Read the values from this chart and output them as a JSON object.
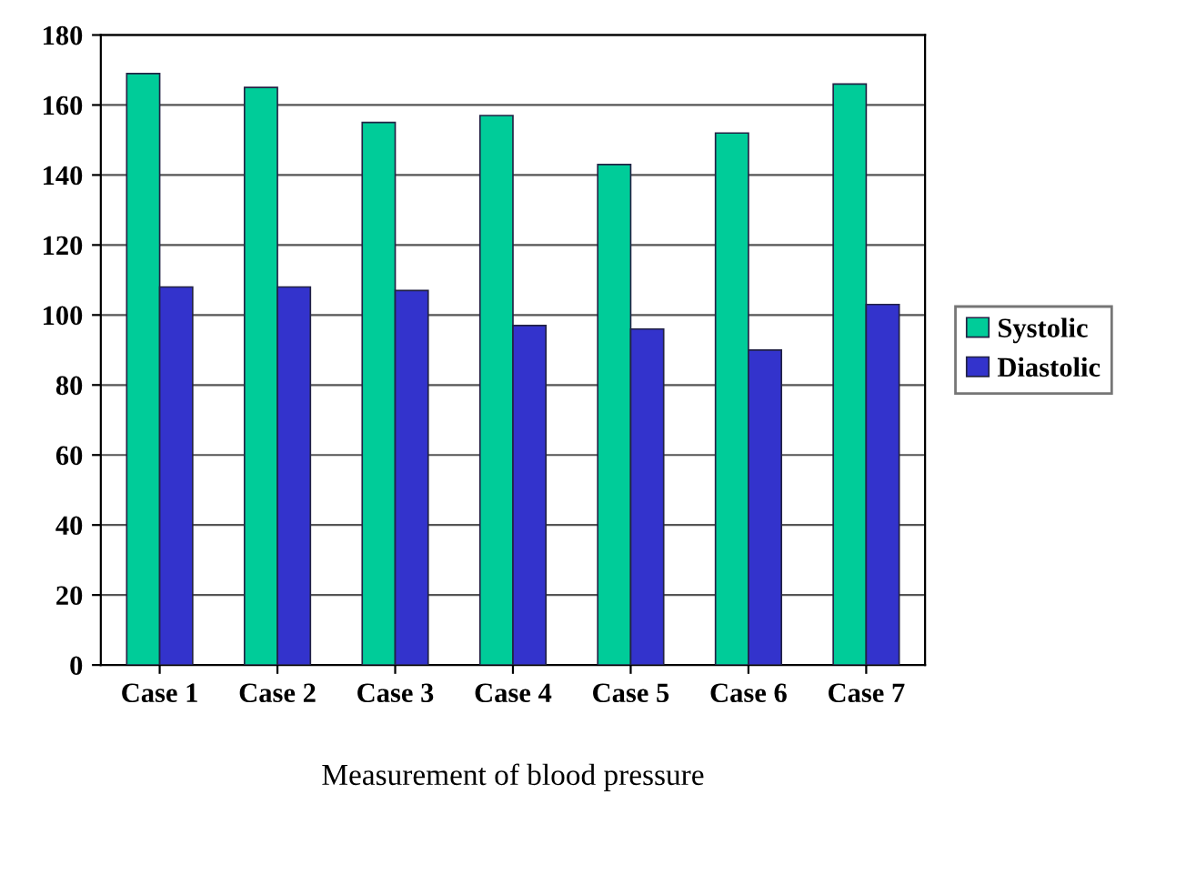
{
  "chart_data": {
    "type": "bar",
    "xlabel": "Measurement of blood pressure",
    "categories": [
      "Case 1",
      "Case 2",
      "Case 3",
      "Case 4",
      "Case 5",
      "Case 6",
      "Case 7"
    ],
    "series": [
      {
        "name": "Systolic",
        "color": "#00cc99",
        "values": [
          169,
          165,
          155,
          157,
          143,
          152,
          166
        ]
      },
      {
        "name": "Diastolic",
        "color": "#3333cc",
        "values": [
          108,
          108,
          107,
          97,
          96,
          90,
          103
        ]
      }
    ],
    "ylim": [
      0,
      180
    ],
    "yticks": [
      0,
      20,
      40,
      60,
      80,
      100,
      120,
      140,
      160,
      180
    ],
    "grid": "y",
    "legend": "right"
  }
}
